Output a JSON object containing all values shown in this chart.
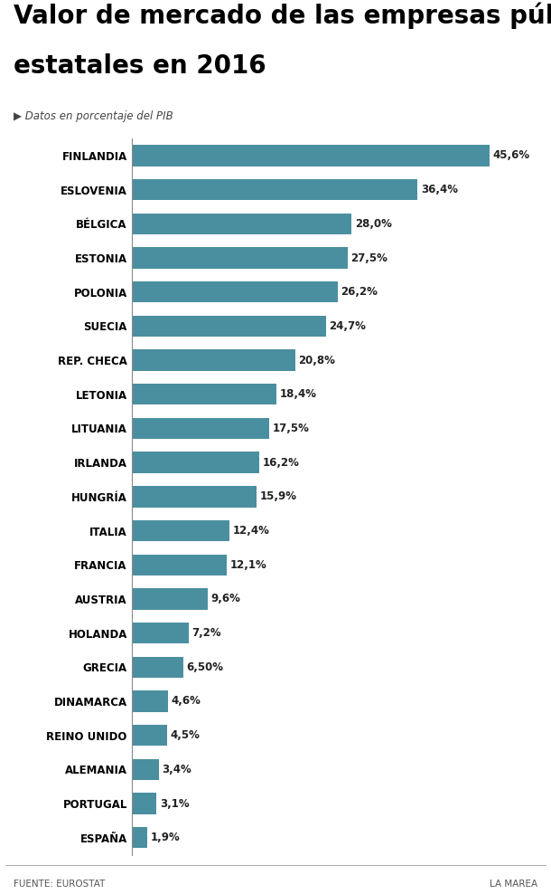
{
  "title_line1": "Valor de mercado de las empresas públicas",
  "title_line2": "estatales en 2016",
  "subtitle": "▶ Datos en porcentaje del PIB",
  "source_left": "FUENTE: EUROSTAT",
  "source_right": "LA MAREA",
  "bar_color": "#4a8fa0",
  "background_color": "#ffffff",
  "categories": [
    "FINLANDIA",
    "ESLOVENIA",
    "BÉLGICA",
    "ESTONIA",
    "POLONIA",
    "SUECIA",
    "REP. CHECA",
    "LETONIA",
    "LITUANIA",
    "IRLANDA",
    "HUNGRÍA",
    "ITALIA",
    "FRANCIA",
    "AUSTRIA",
    "HOLANDA",
    "GRECIA",
    "DINAMARCA",
    "REINO UNIDO",
    "ALEMANIA",
    "PORTUGAL",
    "ESPAÑA"
  ],
  "values": [
    45.6,
    36.4,
    28.0,
    27.5,
    26.2,
    24.7,
    20.8,
    18.4,
    17.5,
    16.2,
    15.9,
    12.4,
    12.1,
    9.6,
    7.2,
    6.5,
    4.6,
    4.5,
    3.4,
    3.1,
    1.9
  ],
  "value_labels": [
    "45,6%",
    "36,4%",
    "28,0%",
    "27,5%",
    "26,2%",
    "24,7%",
    "20,8%",
    "18,4%",
    "17,5%",
    "16,2%",
    "15,9%",
    "12,4%",
    "12,1%",
    "9,6%",
    "7,2%",
    "6,50%",
    "4,6%",
    "4,5%",
    "3,4%",
    "3,1%",
    "1,9%"
  ],
  "xlim": [
    0,
    52
  ],
  "fig_width": 6.1,
  "fig_height": 9.88,
  "dpi": 100,
  "title_fontsize": 20,
  "label_fontsize": 8.5,
  "value_fontsize": 8.5,
  "subtitle_fontsize": 8.5,
  "footer_fontsize": 7.5
}
